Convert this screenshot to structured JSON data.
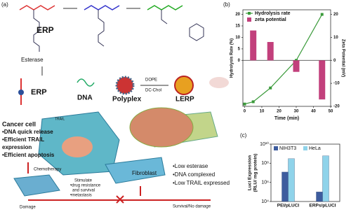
{
  "figure": {
    "panel_labels": [
      "(a)",
      "(b)",
      "(c)"
    ],
    "scheme": {
      "erp_top": "ERP",
      "esterase": "Esterase",
      "erp": "ERP",
      "dna": "DNA",
      "polyplex": "Polyplex",
      "dope": "DOPE",
      "dc_chol": "DC-Chol",
      "lerp": "LERP",
      "trail": "TRAIL",
      "cancer_cell": "Cancer cell",
      "cancer_points": [
        "•DNA quick release",
        "•Efficient TRAIL",
        "expression",
        "•Efficient apoptosis"
      ],
      "chemotherapy": "Chemotherapy",
      "stimulate": [
        "Stimulate",
        "•drug resistance",
        "and survival",
        "•metastasis"
      ],
      "damage": "Damage",
      "fibroblast": "Fibroblast",
      "fibroblast_points": [
        "•Low esterase",
        "•DNA complexed",
        "•Low TRAIL expressed"
      ],
      "survival": "Survival/No damage"
    }
  },
  "chart_data": [
    {
      "type": "line",
      "xlabel": "Time (min)",
      "ylabel": "Hydrolysis Rate (%)",
      "y2label": "Zeta Potential (mV)",
      "xlim": [
        -1,
        50
      ],
      "xticks": [
        0,
        10,
        20,
        30,
        40,
        50
      ],
      "ylim": [
        -20,
        22
      ],
      "yticks": [
        0,
        5,
        10,
        15,
        20
      ],
      "y2lim": [
        -20,
        22
      ],
      "y2ticks": [
        -20,
        -10,
        0,
        10,
        20
      ],
      "legend": "upper left",
      "series": [
        {
          "name": "Hydrolysis rate",
          "type": "line",
          "color": "#3a9a3a",
          "x": [
            0,
            5,
            15,
            30,
            45
          ],
          "values": [
            -19,
            -18,
            -12,
            0,
            20
          ]
        },
        {
          "name": "zeta potential",
          "type": "bar",
          "axis": "y2",
          "color": "#c2407c",
          "x": [
            5,
            15,
            30,
            45
          ],
          "values": [
            13,
            8,
            -5,
            -17
          ]
        }
      ]
    },
    {
      "type": "bar",
      "ylabel": [
        "Luci Expression",
        "(RLU/ mg protein)"
      ],
      "log_scale": true,
      "categories": [
        "PEI/pLUCI",
        "ERPs/pLUCI"
      ],
      "ylim": [
        10000,
        10000000000
      ],
      "yticks": [
        {
          "value": 10000,
          "label": "10⁴"
        },
        {
          "value": 1000000,
          "label": "10⁶"
        },
        {
          "value": 100000000,
          "label": "10⁸"
        },
        {
          "value": 10000000000,
          "label": "10¹⁰"
        }
      ],
      "legend": "upper left",
      "series": [
        {
          "name": "NIH3T3",
          "color": "#3d5c9e",
          "values": [
            12000000,
            100000
          ]
        },
        {
          "name": "HeLa",
          "color": "#8fd3ea",
          "values": [
            300000000,
            600000000
          ]
        }
      ]
    }
  ]
}
